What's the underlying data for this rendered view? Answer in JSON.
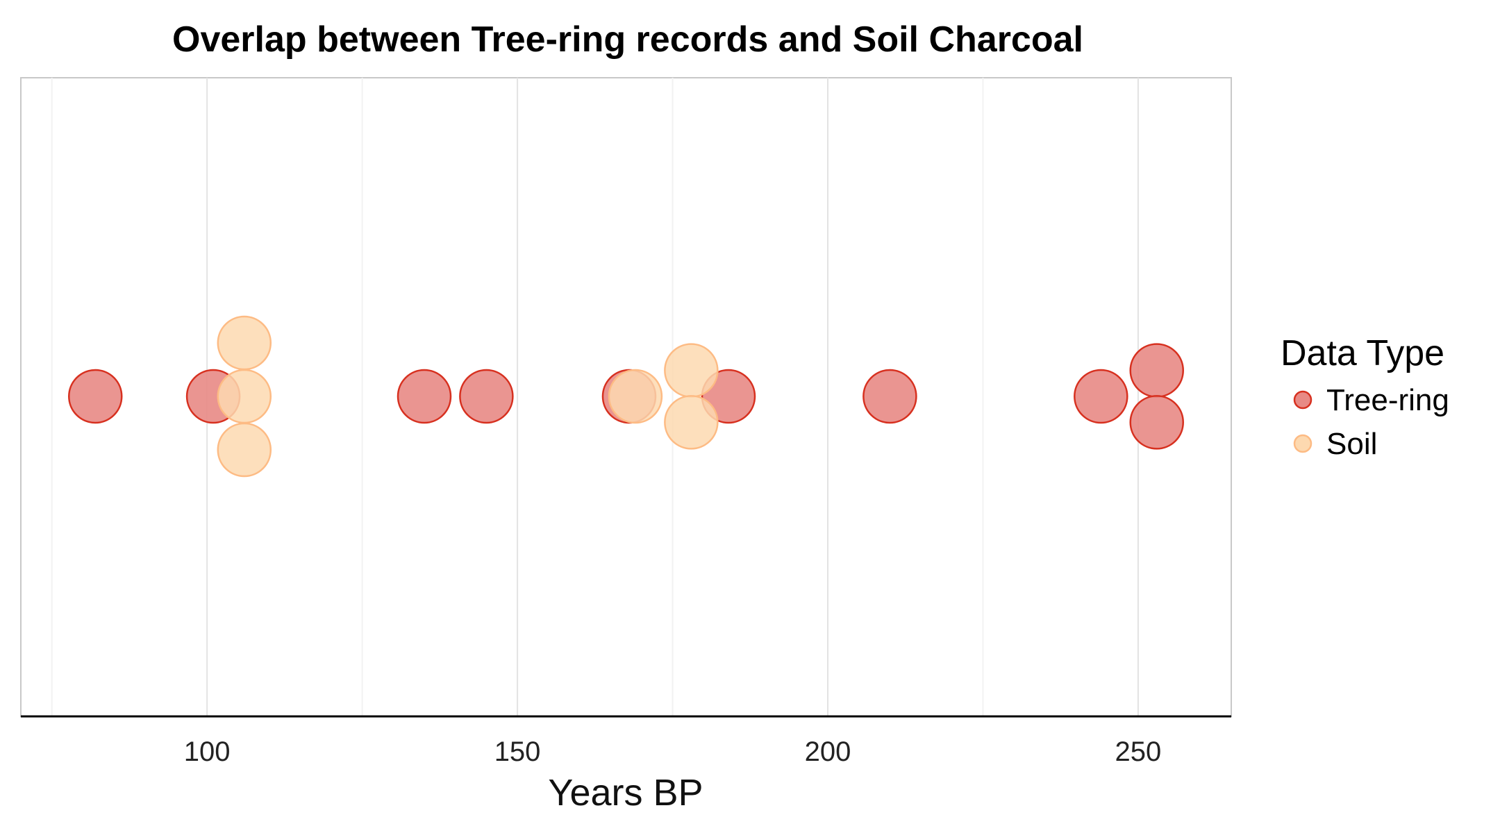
{
  "chart_data": {
    "type": "scatter",
    "title": "Overlap between Tree-ring records and Soil Charcoal",
    "xlabel": "Years BP",
    "ylabel": "",
    "xlim": [
      70,
      265
    ],
    "x_ticks": [
      100,
      150,
      200,
      250
    ],
    "x_minor_ticks": [
      75,
      125,
      175,
      225
    ],
    "grid": "vertical",
    "legend": {
      "title": "Data Type",
      "position": "right",
      "entries": [
        {
          "label": "Tree-ring",
          "fill": "#e88a85",
          "stroke": "#d7301f"
        },
        {
          "label": "Soil",
          "fill": "#fdd9b0",
          "stroke": "#fdbb84"
        }
      ]
    },
    "series": [
      {
        "name": "Tree-ring",
        "fill": "#e88a85",
        "stroke": "#d7301f",
        "x": [
          82,
          101,
          135,
          145,
          168,
          184,
          210,
          244,
          253,
          253
        ]
      },
      {
        "name": "Soil",
        "fill": "#fdd9b0",
        "stroke": "#fdbb84",
        "x": [
          106,
          106,
          106,
          169,
          178,
          178
        ]
      }
    ]
  }
}
